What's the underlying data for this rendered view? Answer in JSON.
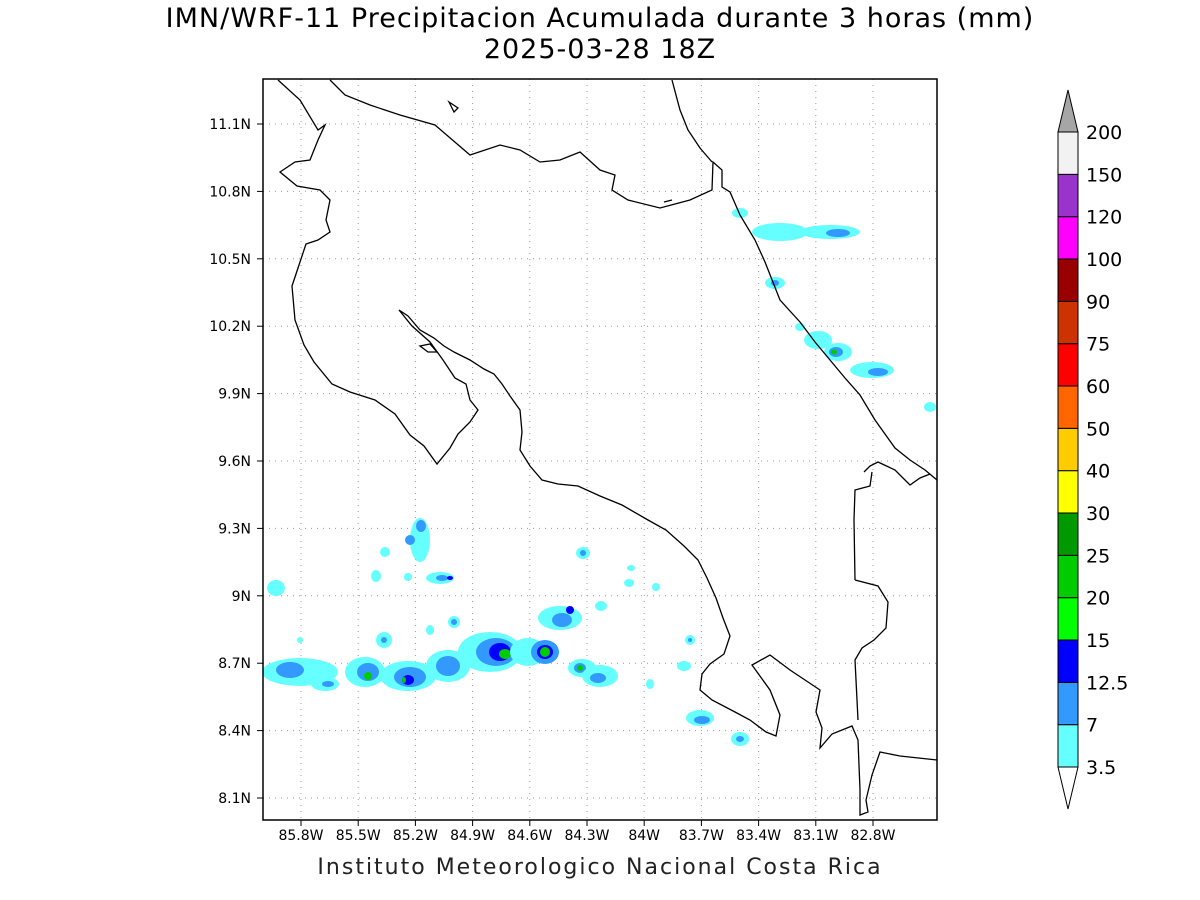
{
  "title": {
    "line1": "IMN/WRF-11 Precipitacion Acumulada durante 3 horas (mm)",
    "line2": "2025-03-28 18Z"
  },
  "footer": "Instituto Meteorologico Nacional Costa Rica",
  "map": {
    "region": "Costa Rica",
    "grid": true,
    "lon_labels": [
      "85.8W",
      "85.5W",
      "85.2W",
      "84.9W",
      "84.6W",
      "84.3W",
      "84W",
      "83.7W",
      "83.4W",
      "83.1W",
      "82.8W"
    ],
    "lat_labels": [
      "11.1N",
      "10.8N",
      "10.5N",
      "10.2N",
      "9.9N",
      "9.6N",
      "9.3N",
      "9N",
      "8.7N",
      "8.4N",
      "8.1N"
    ]
  },
  "colorbar": {
    "unit": "mm",
    "levels": [
      "3.5",
      "7",
      "12.5",
      "15",
      "20",
      "25",
      "30",
      "40",
      "50",
      "60",
      "75",
      "90",
      "100",
      "120",
      "150",
      "200"
    ],
    "colors": [
      "#66ffff",
      "#3399ff",
      "#0000ff",
      "#00ff00",
      "#00cc00",
      "#009900",
      "#ffff00",
      "#ffcc00",
      "#ff6600",
      "#ff0000",
      "#cc3300",
      "#990000",
      "#ff00ff",
      "#9933cc",
      "#f2f2f2"
    ],
    "under_color": "#ffffff",
    "over_color": "#a6a6a6"
  }
}
